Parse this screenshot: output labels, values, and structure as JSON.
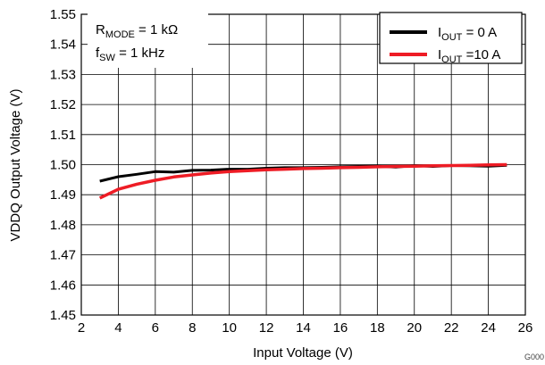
{
  "chart_data": {
    "type": "line",
    "xlabel": "Input Voltage (V)",
    "ylabel": "VDDQ Output Voltage (V)",
    "xlim": [
      2,
      26
    ],
    "ylim": [
      1.45,
      1.55
    ],
    "x_ticks": [
      "2",
      "4",
      "6",
      "8",
      "10",
      "12",
      "14",
      "16",
      "18",
      "20",
      "22",
      "24",
      "26"
    ],
    "y_ticks": [
      "1.45",
      "1.46",
      "1.47",
      "1.48",
      "1.49",
      "1.50",
      "1.51",
      "1.52",
      "1.53",
      "1.54",
      "1.55"
    ],
    "grid": true,
    "legend_position": "top-right",
    "annotation": {
      "line1_main": "R",
      "line1_sub": "MODE",
      "line1_rest": " = 1 kΩ",
      "line2_main": "f",
      "line2_sub": "SW",
      "line2_rest": " = 1 kHz"
    },
    "series": [
      {
        "name": "IOUT = 0 A",
        "legend_main": "I",
        "legend_sub": "OUT",
        "legend_rest": " = 0 A",
        "color": "#000000",
        "x": [
          3,
          4,
          5,
          6,
          7,
          8,
          9,
          10,
          11,
          12,
          13,
          14,
          15,
          16,
          17,
          18,
          19,
          20,
          21,
          22,
          23,
          24,
          25
        ],
        "y": [
          1.4945,
          1.496,
          1.4968,
          1.4977,
          1.4975,
          1.4981,
          1.4982,
          1.4985,
          1.4985,
          1.4988,
          1.499,
          1.499,
          1.4991,
          1.4993,
          1.4994,
          1.4995,
          1.4992,
          1.4997,
          1.4994,
          1.4997,
          1.4996,
          1.4995,
          1.4998
        ]
      },
      {
        "name": "IOUT =10 A",
        "legend_main": "I",
        "legend_sub": "OUT",
        "legend_rest": " =10 A",
        "color": "#ee1c25",
        "x": [
          3,
          4,
          5,
          6,
          7,
          8,
          9,
          10,
          11,
          12,
          13,
          14,
          15,
          16,
          17,
          18,
          19,
          20,
          21,
          22,
          23,
          24,
          25
        ],
        "y": [
          1.4889,
          1.4918,
          1.4935,
          1.4948,
          1.4959,
          1.4966,
          1.4972,
          1.4977,
          1.498,
          1.4983,
          1.4985,
          1.4987,
          1.4988,
          1.499,
          1.4991,
          1.4993,
          1.4994,
          1.4995,
          1.4996,
          1.4997,
          1.4998,
          1.4999,
          1.5
        ]
      }
    ],
    "figure_id": "G000"
  }
}
